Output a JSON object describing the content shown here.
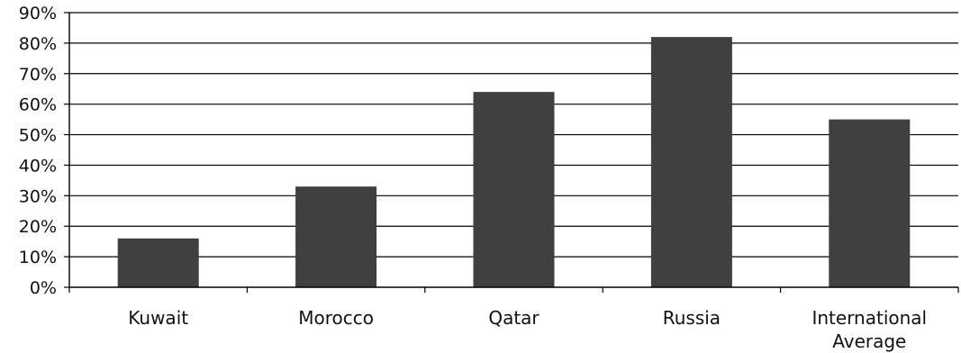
{
  "chart_data": {
    "type": "bar",
    "categories": [
      [
        "Kuwait"
      ],
      [
        "Morocco"
      ],
      [
        "Qatar"
      ],
      [
        "Russia"
      ],
      [
        "International",
        "Average"
      ]
    ],
    "values": [
      16,
      33,
      64,
      82,
      55
    ],
    "unit": "%",
    "ylim": [
      0,
      90
    ],
    "yticks": [
      "0%",
      "10%",
      "20%",
      "30%",
      "40%",
      "50%",
      "60%",
      "70%",
      "80%",
      "90%"
    ],
    "title": "",
    "xlabel": "",
    "ylabel": "",
    "grid": true,
    "legend": "none",
    "bar_color": "#404040",
    "grid_color": "#000000"
  }
}
